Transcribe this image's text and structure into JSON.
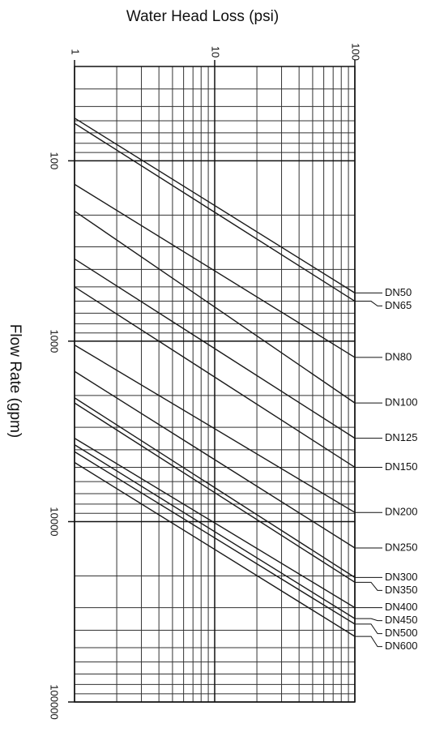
{
  "chart_data": {
    "type": "line",
    "title": "Water Head Loss  (psi)",
    "y_label": "Flow Rate (gpm)",
    "x_log": true,
    "y_log": true,
    "grid": true,
    "y_inverted": true,
    "color": "#1a1a1a",
    "xlim": [
      1,
      100
    ],
    "xticks": [
      1,
      10,
      100
    ],
    "ylim": [
      30,
      100000
    ],
    "yticks": [
      100,
      1000,
      10000,
      100000
    ],
    "series": [
      {
        "name": "DN50",
        "x": [
          1,
          100
        ],
        "values": [
          58,
          540
        ]
      },
      {
        "name": "DN65",
        "x": [
          1,
          100
        ],
        "values": [
          62,
          600
        ]
      },
      {
        "name": "DN80",
        "x": [
          1,
          100
        ],
        "values": [
          135,
          1230
        ]
      },
      {
        "name": "DN100",
        "x": [
          1,
          100
        ],
        "values": [
          190,
          2200
        ]
      },
      {
        "name": "DN125",
        "x": [
          1,
          100
        ],
        "values": [
          350,
          3450
        ]
      },
      {
        "name": "DN150",
        "x": [
          1,
          100
        ],
        "values": [
          500,
          5000
        ]
      },
      {
        "name": "DN200",
        "x": [
          1,
          100
        ],
        "values": [
          1050,
          8900
        ]
      },
      {
        "name": "DN250",
        "x": [
          1,
          100
        ],
        "values": [
          1470,
          14000
        ]
      },
      {
        "name": "DN300",
        "x": [
          1,
          100
        ],
        "values": [
          2060,
          20400
        ]
      },
      {
        "name": "DN350",
        "x": [
          1,
          100
        ],
        "values": [
          2200,
          21700
        ]
      },
      {
        "name": "DN400",
        "x": [
          1,
          100
        ],
        "values": [
          3450,
          30000
        ]
      },
      {
        "name": "DN450",
        "x": [
          1,
          100
        ],
        "values": [
          3750,
          34500
        ]
      },
      {
        "name": "DN500",
        "x": [
          1,
          100
        ],
        "values": [
          4100,
          37000
        ]
      },
      {
        "name": "DN600",
        "x": [
          1,
          100
        ],
        "values": [
          4700,
          43300
        ]
      }
    ]
  }
}
